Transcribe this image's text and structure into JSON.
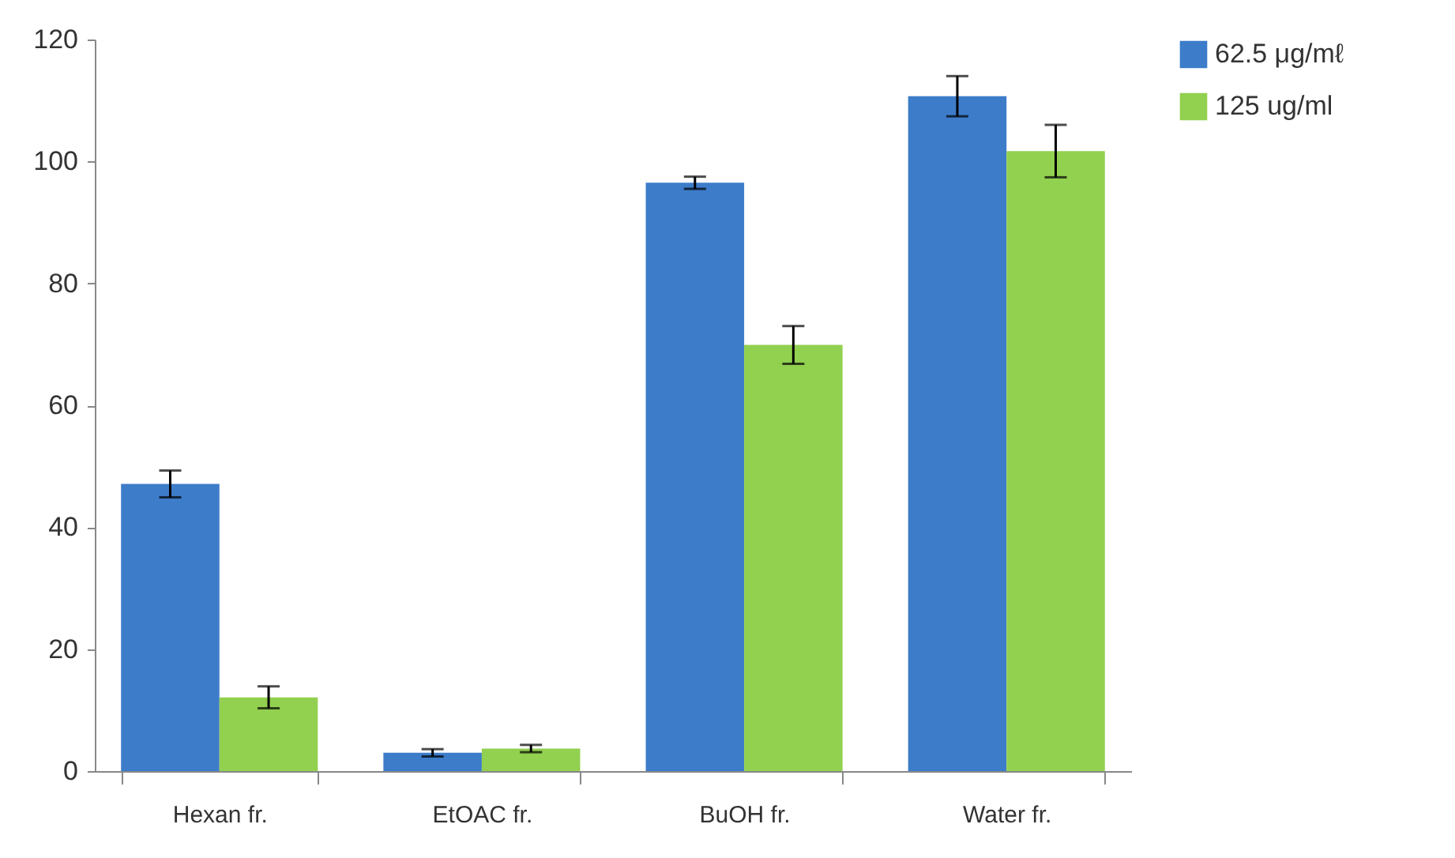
{
  "chart_data": {
    "type": "bar",
    "categories": [
      "Hexan fr.",
      "EtOAC fr.",
      "BuOH fr.",
      "Water fr."
    ],
    "series": [
      {
        "name": "62.5 μg/mℓ",
        "color": "#3d7cc9",
        "values": [
          47.1,
          3.0,
          96.5,
          110.7
        ],
        "errors": [
          2.2,
          0.6,
          1,
          3.3
        ]
      },
      {
        "name": "125 ug/ml",
        "color": "#92d050",
        "values": [
          12.1,
          3.7,
          69.9,
          101.7
        ],
        "errors": [
          1.8,
          0.6,
          3.1,
          4.3
        ]
      }
    ],
    "ylim": [
      0,
      120
    ],
    "yticks": [
      0,
      20,
      40,
      60,
      80,
      100,
      120
    ],
    "grid": false,
    "legend": "right"
  }
}
